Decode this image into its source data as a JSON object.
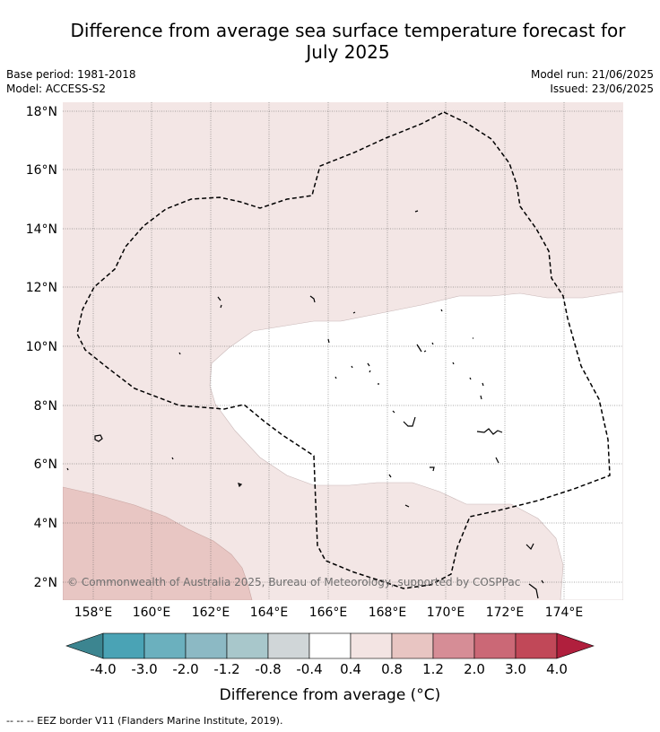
{
  "title_line1": "Difference from average sea surface temperature forecast for",
  "title_line2": "July 2025",
  "base_period": "Base period: 1981-2018",
  "model": "Model: ACCESS-S2",
  "model_run": "Model run: 21/06/2025",
  "issued": "Issued: 23/06/2025",
  "copyright": "© Commonwealth of Australia 2025, Bureau of Meteorology, supported by COSPPac",
  "footer": "--  --  -- EEZ border V11 (Flanders Marine Institute, 2019).",
  "map": {
    "lat_ticks": [
      {
        "value": 18,
        "label": "18°N"
      },
      {
        "value": 16,
        "label": "16°N"
      },
      {
        "value": 14,
        "label": "14°N"
      },
      {
        "value": 12,
        "label": "12°N"
      },
      {
        "value": 10,
        "label": "10°N"
      },
      {
        "value": 8,
        "label": "8°N"
      },
      {
        "value": 6,
        "label": "6°N"
      },
      {
        "value": 4,
        "label": "4°N"
      },
      {
        "value": 2,
        "label": "2°N"
      }
    ],
    "lon_ticks": [
      {
        "value": 158,
        "label": "158°E"
      },
      {
        "value": 160,
        "label": "160°E"
      },
      {
        "value": 162,
        "label": "162°E"
      },
      {
        "value": 164,
        "label": "164°E"
      },
      {
        "value": 166,
        "label": "166°E"
      },
      {
        "value": 168,
        "label": "168°E"
      },
      {
        "value": 170,
        "label": "170°E"
      },
      {
        "value": 172,
        "label": "172°E"
      },
      {
        "value": 174,
        "label": "174°E"
      }
    ],
    "lon_range": [
      157,
      176
    ],
    "lat_range": [
      1.4,
      18.3
    ],
    "gridlines": true,
    "fill_colors": {
      "band_0.4_0.8": "#f3e6e5",
      "band_0.8_1.2": "#e8c6c3",
      "band_-0.4_0.4": "#ffffff"
    }
  },
  "colorbar": {
    "title": "Difference from average (°C)",
    "labels": [
      "-4.0",
      "-3.0",
      "-2.0",
      "-1.2",
      "-0.8",
      "-0.4",
      "0.4",
      "0.8",
      "1.2",
      "2.0",
      "3.0",
      "4.0"
    ],
    "colors": [
      "#3c8590",
      "#4aa3b5",
      "#6bb0be",
      "#8cb9c4",
      "#a8c7cb",
      "#d0d6d8",
      "#ffffff",
      "#f3e4e3",
      "#e8c5c2",
      "#d68d96",
      "#cb6876",
      "#c14858",
      "#b01f3d"
    ]
  }
}
